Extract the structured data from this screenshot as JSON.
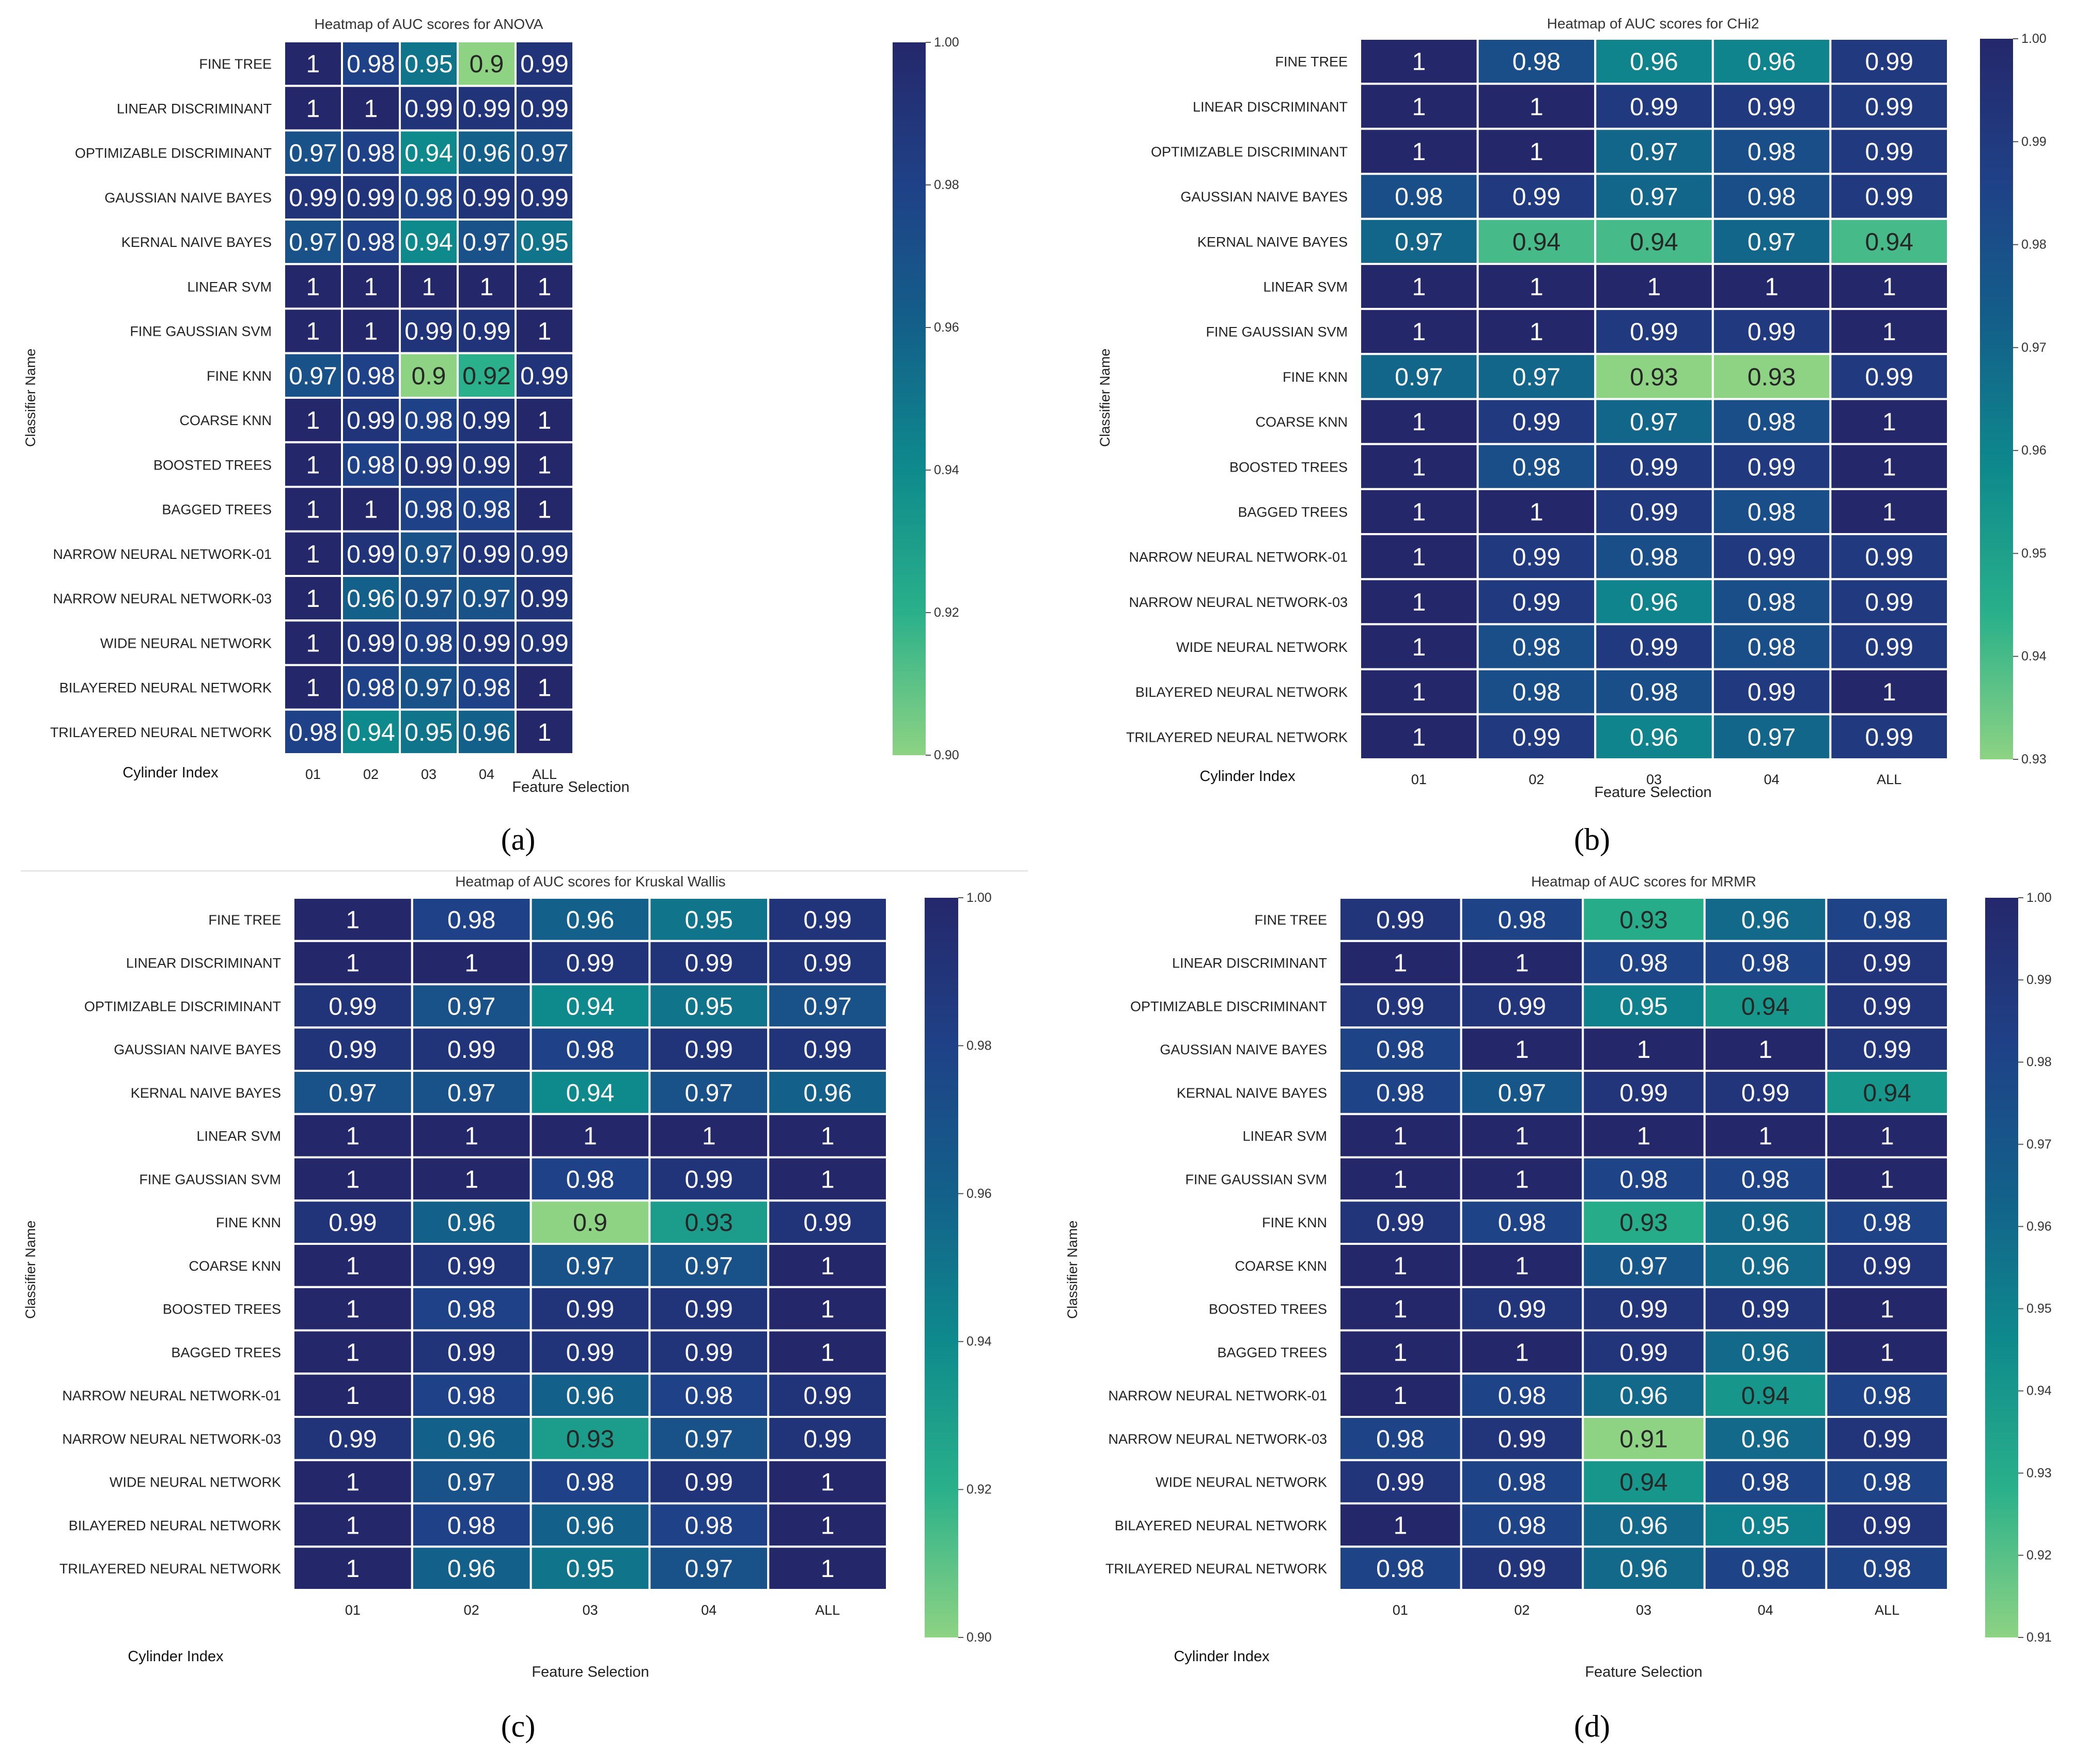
{
  "colorscale": [
    "#8dd383",
    "#2ab08a",
    "#0e8a8c",
    "#13608a",
    "#1f4187",
    "#25276b"
  ],
  "chart_data": [
    {
      "type": "heatmap",
      "panel_label": "(a)",
      "title": "Heatmap of AUC scores for ANOVA",
      "xlabel": "Feature Selection",
      "ylabel": "Classifier Name",
      "corner_label": "Cylinder Index",
      "columns": [
        "01",
        "02",
        "03",
        "04",
        "ALL"
      ],
      "rows": [
        "FINE TREE",
        "LINEAR DISCRIMINANT",
        "OPTIMIZABLE DISCRIMINANT",
        "GAUSSIAN NAIVE BAYES",
        "KERNAL NAIVE BAYES",
        "LINEAR SVM",
        "FINE GAUSSIAN SVM",
        "FINE KNN",
        "COARSE KNN",
        "BOOSTED TREES",
        "BAGGED TREES",
        "NARROW NEURAL NETWORK-01",
        "NARROW NEURAL NETWORK-03",
        "WIDE NEURAL NETWORK",
        "BILAYERED NEURAL NETWORK",
        "TRILAYERED NEURAL NETWORK"
      ],
      "values": [
        [
          1,
          0.98,
          0.95,
          0.9,
          0.99
        ],
        [
          1,
          1,
          0.99,
          0.99,
          0.99
        ],
        [
          0.97,
          0.98,
          0.94,
          0.96,
          0.97
        ],
        [
          0.99,
          0.99,
          0.98,
          0.99,
          0.99
        ],
        [
          0.97,
          0.98,
          0.94,
          0.97,
          0.95
        ],
        [
          1,
          1,
          1,
          1,
          1
        ],
        [
          1,
          1,
          0.99,
          0.99,
          1
        ],
        [
          0.97,
          0.98,
          0.9,
          0.92,
          0.99
        ],
        [
          1,
          0.99,
          0.98,
          0.99,
          1
        ],
        [
          1,
          0.98,
          0.99,
          0.99,
          1
        ],
        [
          1,
          1,
          0.98,
          0.98,
          1
        ],
        [
          1,
          0.99,
          0.97,
          0.99,
          0.99
        ],
        [
          1,
          0.96,
          0.97,
          0.97,
          0.99
        ],
        [
          1,
          0.99,
          0.98,
          0.99,
          0.99
        ],
        [
          1,
          0.98,
          0.97,
          0.98,
          1
        ],
        [
          0.98,
          0.94,
          0.95,
          0.96,
          1
        ]
      ],
      "vmin": 0.9,
      "vmax": 1.0,
      "colorbar_ticks": [
        "1.00",
        "0.98",
        "0.96",
        "0.94",
        "0.92",
        "0.90"
      ]
    },
    {
      "type": "heatmap",
      "panel_label": "(b)",
      "title": "Heatmap of AUC scores for CHi2",
      "xlabel": "Feature Selection",
      "ylabel": "Classifier Name",
      "corner_label": "Cylinder Index",
      "columns": [
        "01",
        "02",
        "03",
        "04",
        "ALL"
      ],
      "rows": [
        "FINE TREE",
        "LINEAR DISCRIMINANT",
        "OPTIMIZABLE DISCRIMINANT",
        "GAUSSIAN NAIVE BAYES",
        "KERNAL NAIVE BAYES",
        "LINEAR SVM",
        "FINE GAUSSIAN SVM",
        "FINE KNN",
        "COARSE KNN",
        "BOOSTED TREES",
        "BAGGED TREES",
        "NARROW NEURAL NETWORK-01",
        "NARROW NEURAL NETWORK-03",
        "WIDE NEURAL NETWORK",
        "BILAYERED NEURAL NETWORK",
        "TRILAYERED NEURAL NETWORK"
      ],
      "values": [
        [
          1,
          0.98,
          0.96,
          0.96,
          0.99
        ],
        [
          1,
          1,
          0.99,
          0.99,
          0.99
        ],
        [
          1,
          1,
          0.97,
          0.98,
          0.99
        ],
        [
          0.98,
          0.99,
          0.97,
          0.98,
          0.99
        ],
        [
          0.97,
          0.94,
          0.94,
          0.97,
          0.94
        ],
        [
          1,
          1,
          1,
          1,
          1
        ],
        [
          1,
          1,
          0.99,
          0.99,
          1
        ],
        [
          0.97,
          0.97,
          0.93,
          0.93,
          0.99
        ],
        [
          1,
          0.99,
          0.97,
          0.98,
          1
        ],
        [
          1,
          0.98,
          0.99,
          0.99,
          1
        ],
        [
          1,
          1,
          0.99,
          0.98,
          1
        ],
        [
          1,
          0.99,
          0.98,
          0.99,
          0.99
        ],
        [
          1,
          0.99,
          0.96,
          0.98,
          0.99
        ],
        [
          1,
          0.98,
          0.99,
          0.98,
          0.99
        ],
        [
          1,
          0.98,
          0.98,
          0.99,
          1
        ],
        [
          1,
          0.99,
          0.96,
          0.97,
          0.99
        ]
      ],
      "vmin": 0.93,
      "vmax": 1.0,
      "colorbar_ticks": [
        "1.00",
        "0.99",
        "0.98",
        "0.97",
        "0.96",
        "0.95",
        "0.94",
        "0.93"
      ]
    },
    {
      "type": "heatmap",
      "panel_label": "(c)",
      "title": "Heatmap of AUC scores for Kruskal Wallis",
      "xlabel": "Feature Selection",
      "ylabel": "Classifier Name",
      "corner_label": "Cylinder Index",
      "columns": [
        "01",
        "02",
        "03",
        "04",
        "ALL"
      ],
      "rows": [
        "FINE TREE",
        "LINEAR DISCRIMINANT",
        "OPTIMIZABLE DISCRIMINANT",
        "GAUSSIAN NAIVE BAYES",
        "KERNAL NAIVE BAYES",
        "LINEAR SVM",
        "FINE GAUSSIAN SVM",
        "FINE KNN",
        "COARSE KNN",
        "BOOSTED TREES",
        "BAGGED TREES",
        "NARROW NEURAL NETWORK-01",
        "NARROW NEURAL NETWORK-03",
        "WIDE NEURAL NETWORK",
        "BILAYERED NEURAL NETWORK",
        "TRILAYERED NEURAL NETWORK"
      ],
      "values": [
        [
          1,
          0.98,
          0.96,
          0.95,
          0.99
        ],
        [
          1,
          1,
          0.99,
          0.99,
          0.99
        ],
        [
          0.99,
          0.97,
          0.94,
          0.95,
          0.97
        ],
        [
          0.99,
          0.99,
          0.98,
          0.99,
          0.99
        ],
        [
          0.97,
          0.97,
          0.94,
          0.97,
          0.96
        ],
        [
          1,
          1,
          1,
          1,
          1
        ],
        [
          1,
          1,
          0.98,
          0.99,
          1
        ],
        [
          0.99,
          0.96,
          0.9,
          0.93,
          0.99
        ],
        [
          1,
          0.99,
          0.97,
          0.97,
          1
        ],
        [
          1,
          0.98,
          0.99,
          0.99,
          1
        ],
        [
          1,
          0.99,
          0.99,
          0.99,
          1
        ],
        [
          1,
          0.98,
          0.96,
          0.98,
          0.99
        ],
        [
          0.99,
          0.96,
          0.93,
          0.97,
          0.99
        ],
        [
          1,
          0.97,
          0.98,
          0.99,
          1
        ],
        [
          1,
          0.98,
          0.96,
          0.98,
          1
        ],
        [
          1,
          0.96,
          0.95,
          0.97,
          1
        ]
      ],
      "vmin": 0.9,
      "vmax": 1.0,
      "colorbar_ticks": [
        "1.00",
        "0.98",
        "0.96",
        "0.94",
        "0.92",
        "0.90"
      ]
    },
    {
      "type": "heatmap",
      "panel_label": "(d)",
      "title": "Heatmap of AUC scores for MRMR",
      "xlabel": "Feature Selection",
      "ylabel": "Classifier Name",
      "corner_label": "Cylinder Index",
      "columns": [
        "01",
        "02",
        "03",
        "04",
        "ALL"
      ],
      "rows": [
        "FINE TREE",
        "LINEAR DISCRIMINANT",
        "OPTIMIZABLE DISCRIMINANT",
        "GAUSSIAN NAIVE BAYES",
        "KERNAL NAIVE BAYES",
        "LINEAR SVM",
        "FINE GAUSSIAN SVM",
        "FINE KNN",
        "COARSE KNN",
        "BOOSTED TREES",
        "BAGGED TREES",
        "NARROW NEURAL NETWORK-01",
        "NARROW NEURAL NETWORK-03",
        "WIDE NEURAL NETWORK",
        "BILAYERED NEURAL NETWORK",
        "TRILAYERED NEURAL NETWORK"
      ],
      "values": [
        [
          0.99,
          0.98,
          0.93,
          0.96,
          0.98
        ],
        [
          1,
          1,
          0.98,
          0.98,
          0.99
        ],
        [
          0.99,
          0.99,
          0.95,
          0.94,
          0.99
        ],
        [
          0.98,
          1,
          1,
          1,
          0.99
        ],
        [
          0.98,
          0.97,
          0.99,
          0.99,
          0.94
        ],
        [
          1,
          1,
          1,
          1,
          1
        ],
        [
          1,
          1,
          0.98,
          0.98,
          1
        ],
        [
          0.99,
          0.98,
          0.93,
          0.96,
          0.98
        ],
        [
          1,
          1,
          0.97,
          0.96,
          0.99
        ],
        [
          1,
          0.99,
          0.99,
          0.99,
          1
        ],
        [
          1,
          1,
          0.99,
          0.96,
          1
        ],
        [
          1,
          0.98,
          0.96,
          0.94,
          0.98
        ],
        [
          0.98,
          0.99,
          0.91,
          0.96,
          0.99
        ],
        [
          0.99,
          0.98,
          0.94,
          0.98,
          0.98
        ],
        [
          1,
          0.98,
          0.96,
          0.95,
          0.99
        ],
        [
          0.98,
          0.99,
          0.96,
          0.98,
          0.98
        ]
      ],
      "vmin": 0.91,
      "vmax": 1.0,
      "colorbar_ticks": [
        "1.00",
        "0.99",
        "0.98",
        "0.97",
        "0.96",
        "0.95",
        "0.94",
        "0.93",
        "0.92",
        "0.91"
      ]
    }
  ]
}
